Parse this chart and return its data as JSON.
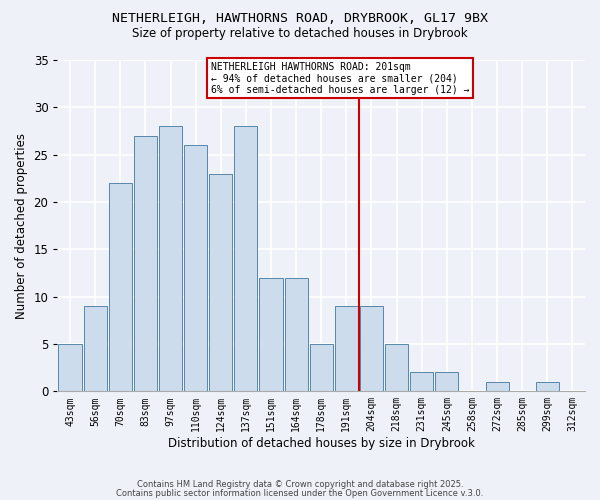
{
  "title1": "NETHERLEIGH, HAWTHORNS ROAD, DRYBROOK, GL17 9BX",
  "title2": "Size of property relative to detached houses in Drybrook",
  "xlabel": "Distribution of detached houses by size in Drybrook",
  "ylabel": "Number of detached properties",
  "bar_labels": [
    "43sqm",
    "56sqm",
    "70sqm",
    "83sqm",
    "97sqm",
    "110sqm",
    "124sqm",
    "137sqm",
    "151sqm",
    "164sqm",
    "178sqm",
    "191sqm",
    "204sqm",
    "218sqm",
    "231sqm",
    "245sqm",
    "258sqm",
    "272sqm",
    "285sqm",
    "299sqm",
    "312sqm"
  ],
  "bar_values": [
    5,
    9,
    22,
    27,
    28,
    26,
    23,
    28,
    12,
    12,
    5,
    9,
    9,
    5,
    2,
    2,
    0,
    1,
    0,
    1,
    0
  ],
  "bar_color": "#ccdcec",
  "bar_edge_color": "#5588aa",
  "bg_color": "#eef2f8",
  "grid_color": "#ffffff",
  "ref_line_color": "#cc0000",
  "annotation_text": "NETHERLEIGH HAWTHORNS ROAD: 201sqm\n← 94% of detached houses are smaller (204)\n6% of semi-detached houses are larger (12) →",
  "annotation_box_color": "#ffffff",
  "annotation_box_edge": "#cc0000",
  "ylim": [
    0,
    35
  ],
  "yticks": [
    0,
    5,
    10,
    15,
    20,
    25,
    30,
    35
  ],
  "footer1": "Contains HM Land Registry data © Crown copyright and database right 2025.",
  "footer2": "Contains public sector information licensed under the Open Government Licence v.3.0."
}
